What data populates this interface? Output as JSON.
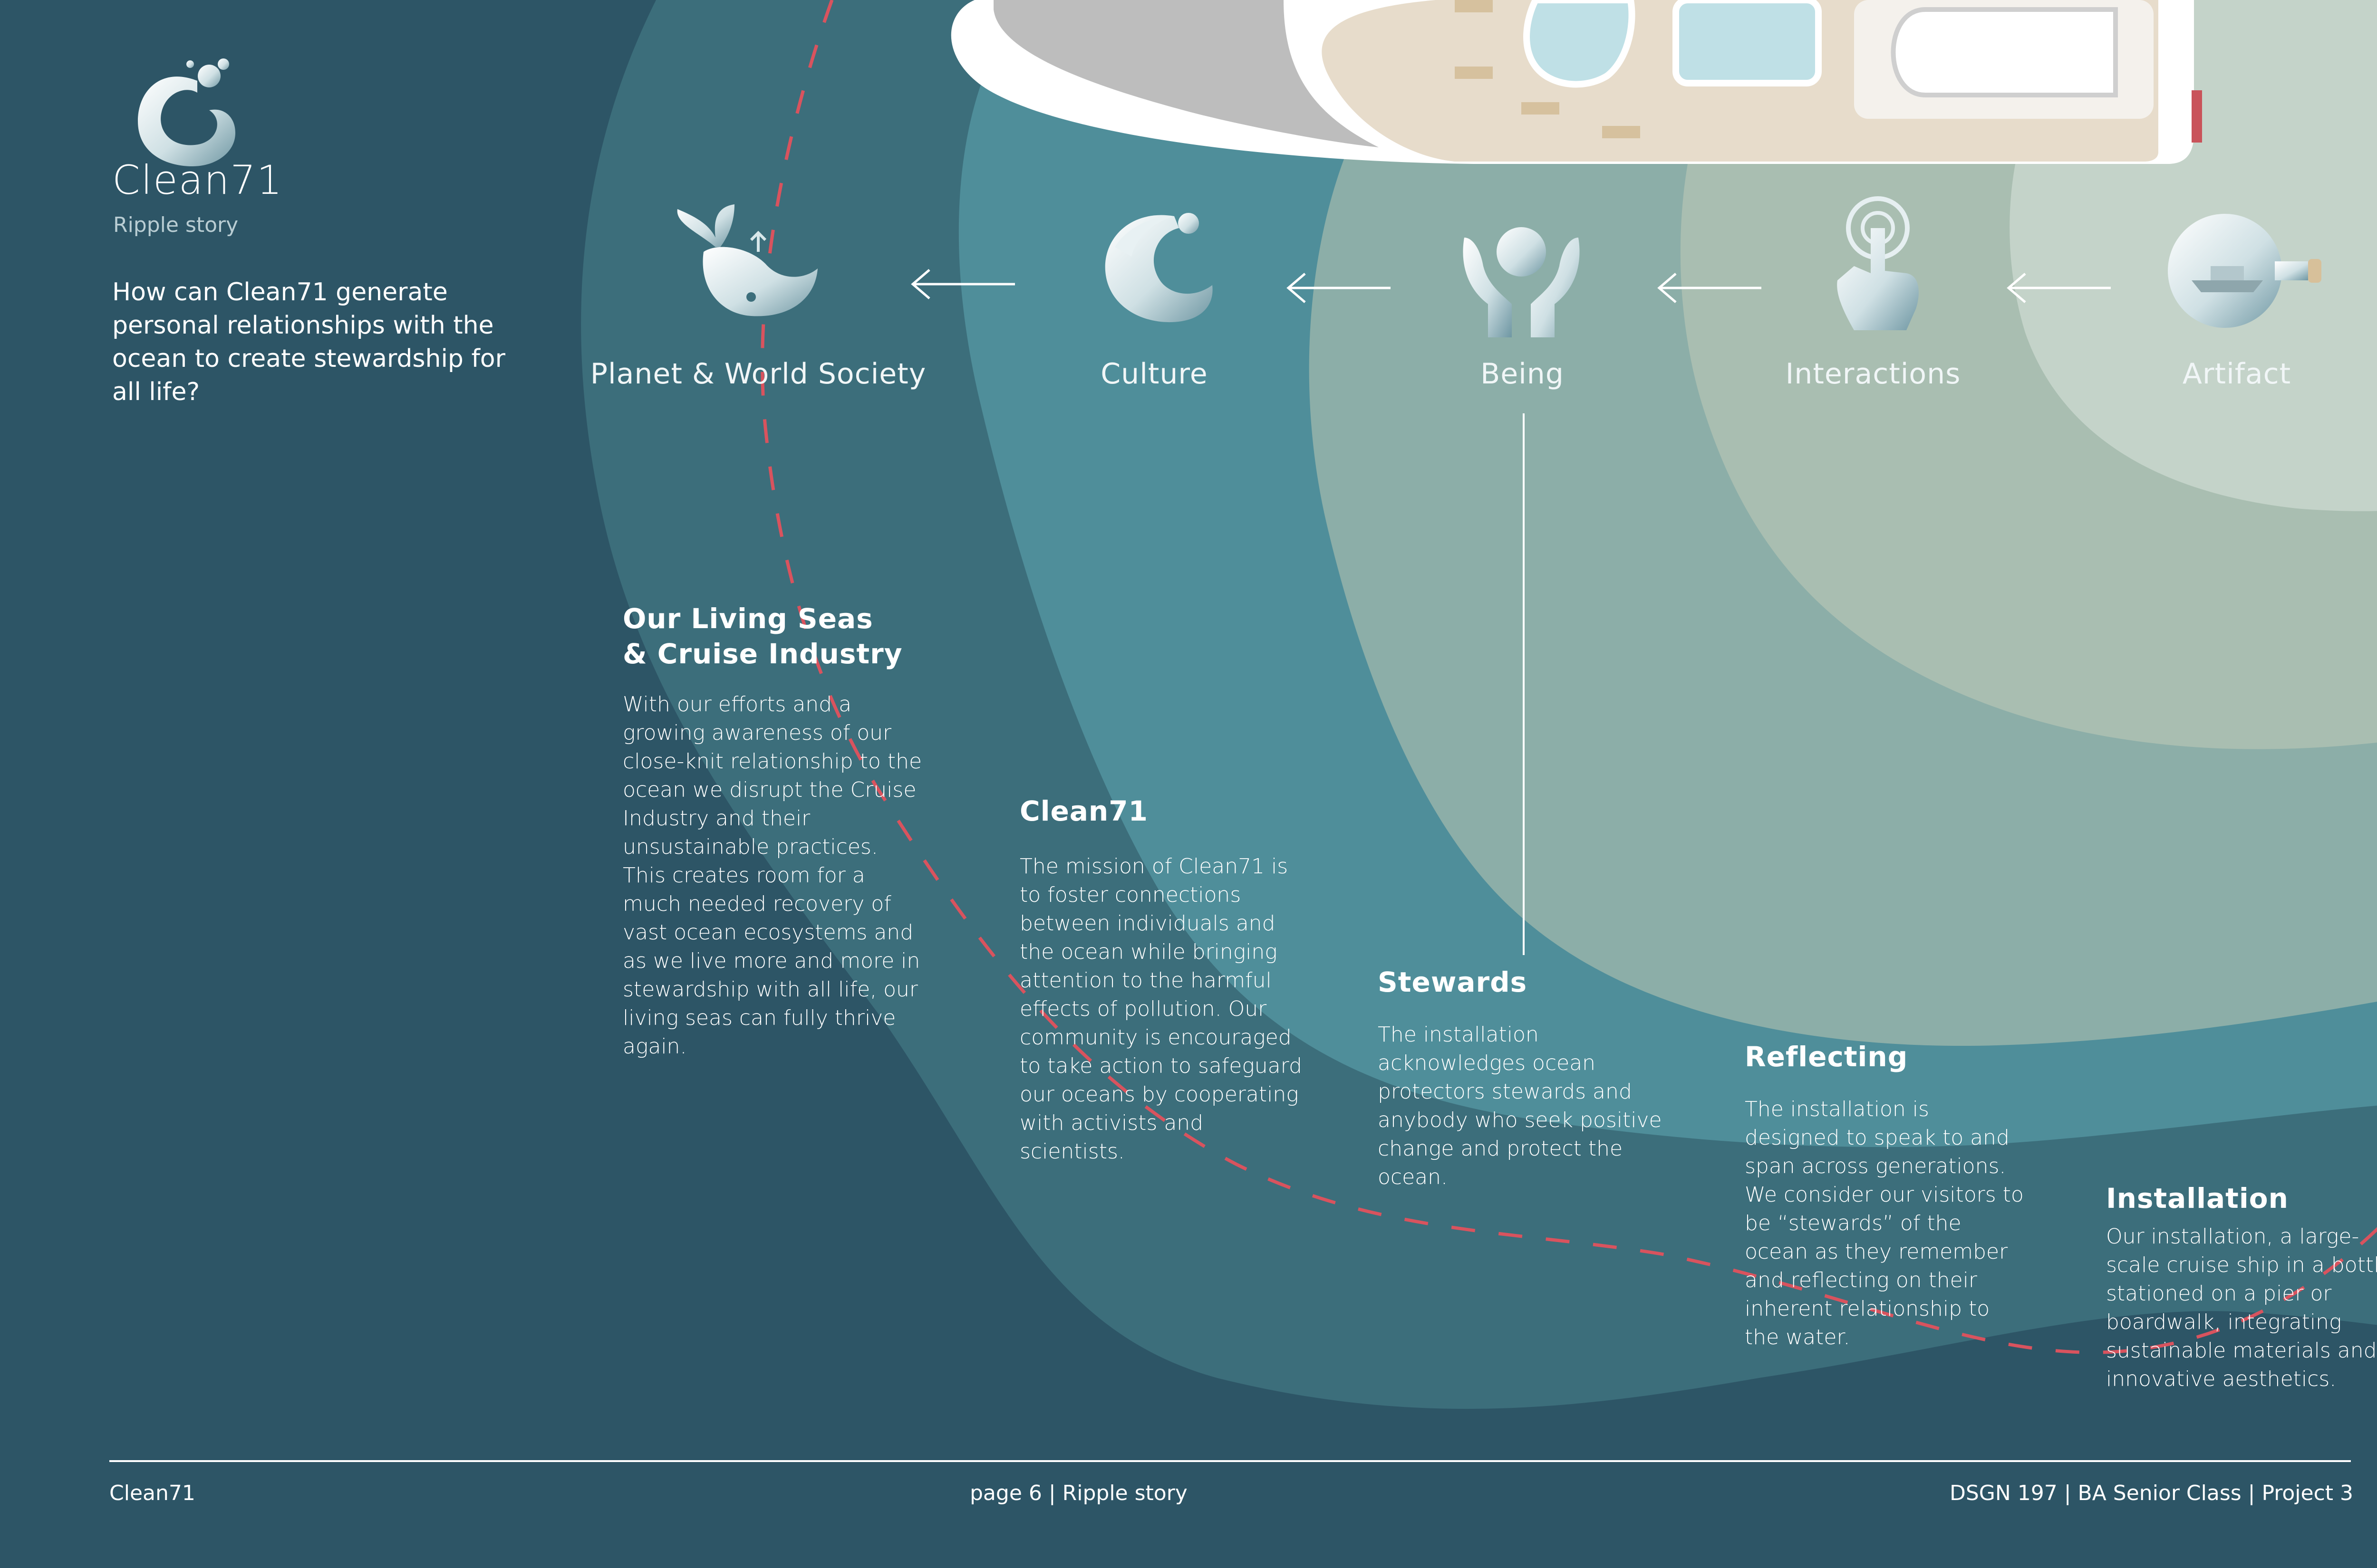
{
  "brand": {
    "name": "Clean71",
    "subtitle": "Ripple story",
    "question": "How can Clean71  generate personal relationships with the ocean to create stewardship for all life?"
  },
  "stages": [
    {
      "label": "Planet & World Society",
      "icon": "whale-icon"
    },
    {
      "label": "Culture",
      "icon": "wave-logo-icon"
    },
    {
      "label": "Being",
      "icon": "hands-holding-globe-icon"
    },
    {
      "label": "Interactions",
      "icon": "touch-hand-icon"
    },
    {
      "label": "Artifact",
      "icon": "ship-in-bottle-icon"
    }
  ],
  "blocks": {
    "living_seas": {
      "title_line1": "Our Living Seas",
      "title_line2": "& Cruise Industry",
      "body": "With our efforts and a growing awareness of our close-knit relationship to the ocean we disrupt the Cruise Industry and their unsustainable practices. This creates room for a much needed recovery of vast ocean ecosystems and as we live more and more in stewardship with all life, our living seas can fully thrive again."
    },
    "clean71": {
      "title": "Clean71",
      "body": "The mission of Clean71 is to foster connections between individuals and the ocean while bringing attention to the harmful effects of pollution. Our community is encouraged to take action to safeguard our oceans by cooperating with activists and scientists."
    },
    "stewards": {
      "title": "Stewards",
      "body": "The installation acknowledges ocean protectors stewards and anybody who seek positive change and protect the ocean."
    },
    "reflecting": {
      "title": "Reflecting",
      "body": "The installation is designed to speak to and span across generations. We consider our visitors to be “stewards” of the ocean as they remember and reflecting on their inherent relationship to the water."
    },
    "installation": {
      "title": "Installation",
      "body": "Our installation, a large-scale cruise ship in a bottle stationed on a pier or boardwalk, integrating sustainable materials and innovative aesthetics."
    }
  },
  "footer": {
    "left": "Clean71",
    "center": "page 6 | Ripple story",
    "right": "DSGN 197 | BA Senior Class | Project 3"
  },
  "colors": {
    "ring_outer": "#2d5566",
    "ring_2": "#3c6e7b",
    "ring_3": "#4f8e9a",
    "ring_4": "#8caea8",
    "ring_5": "#a9beb1",
    "ring_inner": "#c4d3c9",
    "dashed_path": "#d9535e"
  }
}
